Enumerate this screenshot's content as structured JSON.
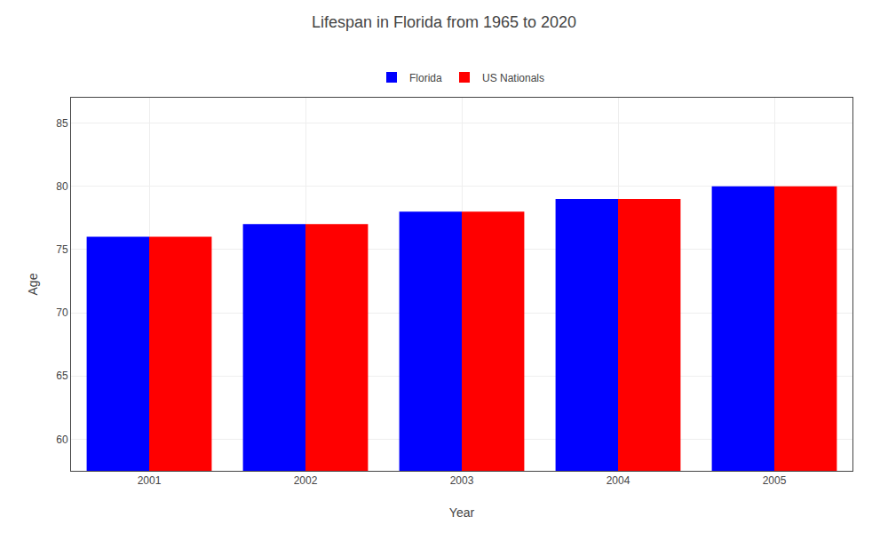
{
  "chart_data": {
    "type": "bar",
    "title": "Lifespan in Florida from 1965 to 2020",
    "xlabel": "Year",
    "ylabel": "Age",
    "categories": [
      "2001",
      "2002",
      "2003",
      "2004",
      "2005"
    ],
    "series": [
      {
        "name": "Florida",
        "color": "#0000ff",
        "values": [
          76,
          77,
          78,
          79,
          80
        ]
      },
      {
        "name": "US Nationals",
        "color": "#ff0000",
        "values": [
          76,
          77,
          78,
          79,
          80
        ]
      }
    ],
    "ylim": [
      57.5,
      87
    ],
    "yticks": [
      60,
      65,
      70,
      75,
      80,
      85
    ],
    "grid": true,
    "legend": "top"
  }
}
